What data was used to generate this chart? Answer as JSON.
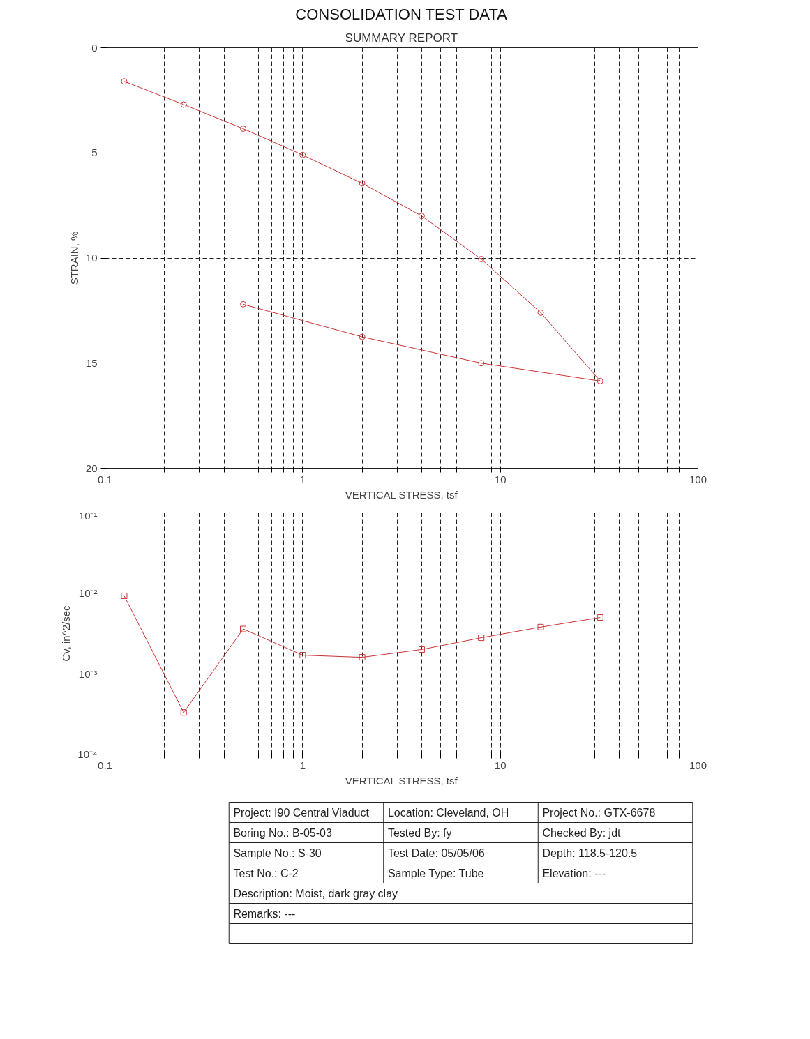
{
  "chart_data": [
    {
      "type": "line",
      "title": "CONSOLIDATION TEST DATA",
      "subtitle": "SUMMARY REPORT",
      "xlabel": "VERTICAL STRESS, tsf",
      "ylabel": "STRAIN, %",
      "log": "x",
      "grid": true,
      "marker": "circle",
      "line_style": "solid",
      "xlim": [
        0.1,
        100
      ],
      "ylim": [
        20,
        0
      ],
      "xticks": [
        0.1,
        {
          "value": 0.2,
          "label": null
        },
        {
          "value": 0.3,
          "label": null
        },
        {
          "value": 0.4,
          "label": null
        },
        {
          "value": 0.5,
          "label": null
        },
        {
          "value": 0.6,
          "label": null
        },
        {
          "value": 0.7,
          "label": null
        },
        {
          "value": 0.8,
          "label": null
        },
        {
          "value": 0.9,
          "label": null
        },
        1,
        {
          "value": 2,
          "label": null
        },
        {
          "value": 3,
          "label": null
        },
        {
          "value": 4,
          "label": null
        },
        {
          "value": 5,
          "label": null
        },
        {
          "value": 6,
          "label": null
        },
        {
          "value": 7,
          "label": null
        },
        {
          "value": 8,
          "label": null
        },
        {
          "value": 9,
          "label": null
        },
        10,
        {
          "value": 20,
          "label": null
        },
        {
          "value": 30,
          "label": null
        },
        {
          "value": 40,
          "label": null
        },
        {
          "value": 50,
          "label": null
        },
        {
          "value": 60,
          "label": null
        },
        {
          "value": 70,
          "label": null
        },
        {
          "value": 80,
          "label": null
        },
        {
          "value": 90,
          "label": null
        },
        100
      ],
      "yticks": [
        0,
        5,
        10,
        15,
        20
      ],
      "series": [
        {
          "color": "#cc3333",
          "x": [
            0.125,
            0.25,
            0.5,
            1,
            2,
            4,
            8,
            16,
            32,
            8,
            2,
            0.5
          ],
          "values": [
            1.6,
            2.7,
            3.85,
            5.1,
            6.45,
            8.0,
            10.05,
            12.6,
            15.85,
            15.0,
            13.75,
            12.2
          ]
        }
      ]
    },
    {
      "type": "line",
      "xlabel": "VERTICAL STRESS, tsf",
      "ylabel": "Cv, in^2/sec",
      "log": "xy",
      "grid": true,
      "marker": "square",
      "line_style": "solid",
      "xlim": [
        0.1,
        100
      ],
      "ylim": [
        0.0001,
        0.1
      ],
      "xticks": [
        0.1,
        {
          "value": 0.2,
          "label": null
        },
        {
          "value": 0.3,
          "label": null
        },
        {
          "value": 0.4,
          "label": null
        },
        {
          "value": 0.5,
          "label": null
        },
        {
          "value": 0.6,
          "label": null
        },
        {
          "value": 0.7,
          "label": null
        },
        {
          "value": 0.8,
          "label": null
        },
        {
          "value": 0.9,
          "label": null
        },
        1,
        {
          "value": 2,
          "label": null
        },
        {
          "value": 3,
          "label": null
        },
        {
          "value": 4,
          "label": null
        },
        {
          "value": 5,
          "label": null
        },
        {
          "value": 6,
          "label": null
        },
        {
          "value": 7,
          "label": null
        },
        {
          "value": 8,
          "label": null
        },
        {
          "value": 9,
          "label": null
        },
        10,
        {
          "value": 20,
          "label": null
        },
        {
          "value": 30,
          "label": null
        },
        {
          "value": 40,
          "label": null
        },
        {
          "value": 50,
          "label": null
        },
        {
          "value": 60,
          "label": null
        },
        {
          "value": 70,
          "label": null
        },
        {
          "value": 80,
          "label": null
        },
        {
          "value": 90,
          "label": null
        },
        100
      ],
      "yticks": [
        {
          "value": 0.0001,
          "label": "10⁻⁴"
        },
        {
          "value": 0.001,
          "label": "10⁻³"
        },
        {
          "value": 0.01,
          "label": "10⁻²"
        },
        {
          "value": 0.1,
          "label": "10⁻¹"
        }
      ],
      "series": [
        {
          "color": "#cc3333",
          "x": [
            0.125,
            0.25,
            0.5,
            1,
            2,
            4,
            8,
            16,
            32
          ],
          "values": [
            0.0093,
            0.00033,
            0.0036,
            0.0017,
            0.0016,
            0.002,
            0.0028,
            0.0038,
            0.005
          ]
        }
      ]
    },
    {
      "type": "other",
      "annotations": [
        "Project: I90 Central Viaduct",
        "Location: Cleveland, OH",
        "Project No.: GTX-6678",
        "Boring No.: B-05-03",
        "Tested By: fy",
        "Checked By: jdt",
        "Sample No.: S-30",
        "Test Date: 05/05/06",
        "Depth: 118.5-120.5",
        "Test No.: C-2",
        "Sample Type: Tube",
        "Elevation: ---",
        "Description: Moist, dark gray clay",
        "Remarks: ---"
      ]
    }
  ]
}
